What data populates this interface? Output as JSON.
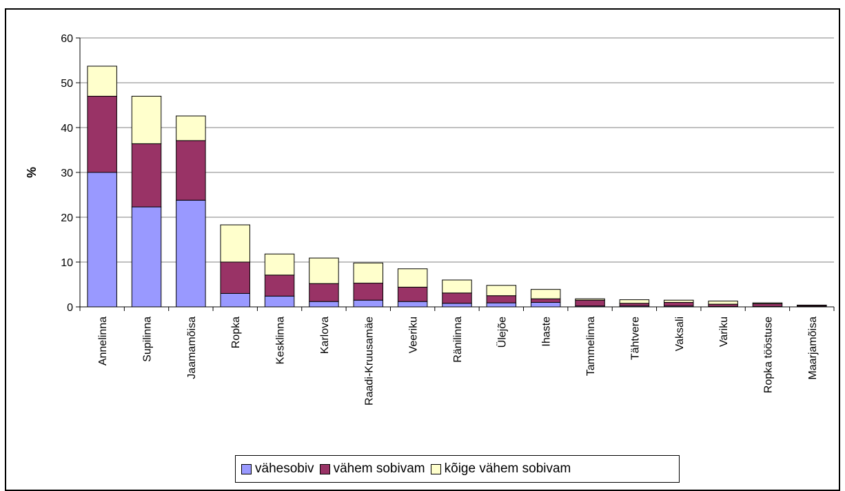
{
  "chart_data": {
    "type": "bar",
    "stacked": true,
    "title": "",
    "xlabel": "",
    "ylabel": "%",
    "ylim": [
      0,
      60
    ],
    "yticks": [
      0,
      10,
      20,
      30,
      40,
      50,
      60
    ],
    "grid": true,
    "legend_position": "bottom",
    "categories": [
      "Annelinna",
      "Supilinna",
      "Jaamamõisa",
      "Ropka",
      "Kesklinna",
      "Karlova",
      "Raadi-Kruusamäe",
      "Veeriku",
      "Ränilinna",
      "Ülejõe",
      "Ihaste",
      "Tammelinna",
      "Tähtvere",
      "Vaksali",
      "Variku",
      "Ropka tööstuse",
      "Maarjamõisa"
    ],
    "series": [
      {
        "name": "vähesobiv",
        "color": "#9999ff",
        "values": [
          30,
          22.3,
          23.8,
          3,
          2.4,
          1.2,
          1.5,
          1.2,
          0.8,
          0.9,
          1,
          0.2,
          0.2,
          0.2,
          0.1,
          0.1,
          0.1
        ]
      },
      {
        "name": "vähem sobivam",
        "color": "#993366",
        "values": [
          17,
          14.1,
          13.3,
          7,
          4.7,
          4,
          3.8,
          3.2,
          2.3,
          1.6,
          0.8,
          1.3,
          0.6,
          0.8,
          0.5,
          0.6,
          0.2
        ]
      },
      {
        "name": "kõige vähem sobivam",
        "color": "#ffffcc",
        "values": [
          6.7,
          10.6,
          5.5,
          8.3,
          4.7,
          5.7,
          4.5,
          4.1,
          2.9,
          2.3,
          2.1,
          0.3,
          0.8,
          0.5,
          0.7,
          0.2,
          0.1
        ]
      }
    ]
  }
}
